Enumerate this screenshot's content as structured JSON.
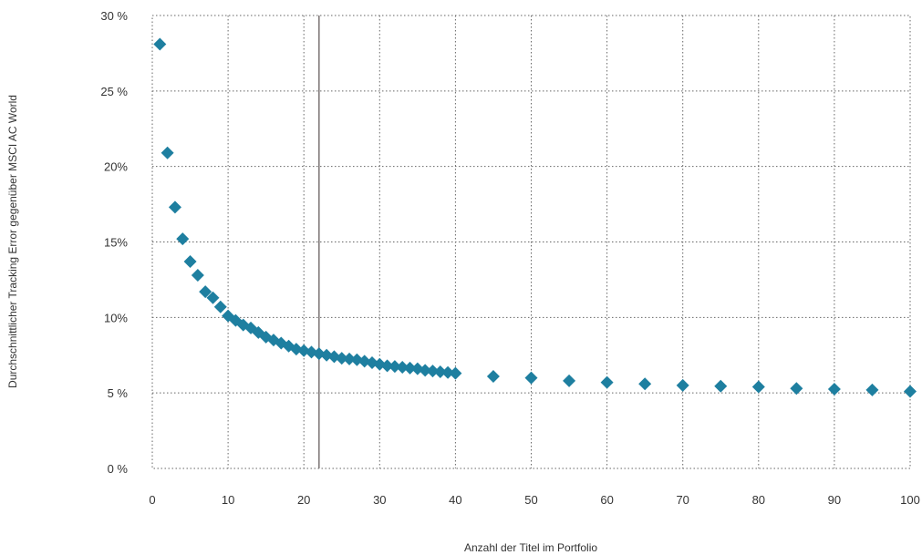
{
  "chart_data": {
    "type": "scatter",
    "title": "",
    "xlabel": "Anzahl der Titel im Portfolio",
    "ylabel": "Durchschnittlicher Tracking Error gegenüber MSCI AC World",
    "xlim": [
      0,
      100
    ],
    "ylim": [
      0,
      30
    ],
    "x_ticks": [
      "0",
      "10",
      "20",
      "30",
      "40",
      "50",
      "60",
      "70",
      "80",
      "90",
      "100"
    ],
    "y_ticks": [
      "0 %",
      "5 %",
      "10%",
      "15%",
      "20%",
      "25 %",
      "30 %"
    ],
    "grid": true,
    "marker_color": "#1e7fa0",
    "reference_line_x": 22,
    "reference_line_color": "#7a7373",
    "series": [
      {
        "x": [
          1,
          2,
          3,
          4,
          5,
          6,
          7,
          8,
          9,
          10,
          11,
          12,
          13,
          14,
          15,
          16,
          17,
          18,
          19,
          20,
          21,
          22,
          23,
          24,
          25,
          26,
          27,
          28,
          29,
          30,
          31,
          32,
          33,
          34,
          35,
          36,
          37,
          38,
          39,
          40,
          45,
          50,
          55,
          60,
          65,
          70,
          75,
          80,
          85,
          90,
          95,
          100
        ],
        "y": [
          28.1,
          20.9,
          17.3,
          15.2,
          13.7,
          12.8,
          11.7,
          11.3,
          10.7,
          10.1,
          9.8,
          9.5,
          9.3,
          9.0,
          8.7,
          8.5,
          8.3,
          8.1,
          7.9,
          7.8,
          7.7,
          7.6,
          7.5,
          7.4,
          7.3,
          7.25,
          7.2,
          7.1,
          7.0,
          6.9,
          6.8,
          6.75,
          6.7,
          6.65,
          6.6,
          6.5,
          6.45,
          6.4,
          6.35,
          6.3,
          6.1,
          6.0,
          5.8,
          5.7,
          5.6,
          5.5,
          5.45,
          5.4,
          5.3,
          5.25,
          5.2,
          5.1
        ]
      }
    ]
  }
}
